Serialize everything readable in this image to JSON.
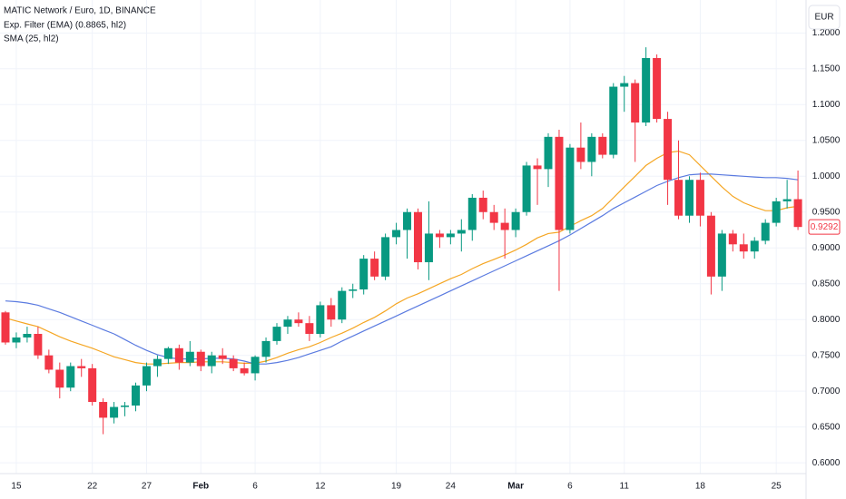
{
  "chart_data": {
    "type": "candlestick",
    "title": "MATIC Network / Euro, 1D, BINANCE",
    "currency": "EUR",
    "up_color": "#089981",
    "down_color": "#f23645",
    "ohlc": {
      "open": [
        0.81,
        0.768,
        0.775,
        0.78,
        0.75,
        0.73,
        0.705,
        0.735,
        0.732,
        0.685,
        0.663,
        0.678,
        0.68,
        0.708,
        0.735,
        0.745,
        0.76,
        0.74,
        0.755,
        0.735,
        0.75,
        0.745,
        0.732,
        0.725,
        0.748,
        0.77,
        0.79,
        0.8,
        0.795,
        0.78,
        0.82,
        0.8,
        0.84,
        0.842,
        0.885,
        0.86,
        0.915,
        0.925,
        0.95,
        0.88,
        0.92,
        0.915,
        0.92,
        0.925,
        0.97,
        0.95,
        0.935,
        0.925,
        0.95,
        1.015,
        1.01,
        1.055,
        0.925,
        1.04,
        1.02,
        1.055,
        1.03,
        1.125,
        1.13,
        1.075,
        1.165,
        1.08,
        0.995,
        0.945,
        0.995,
        0.945,
        0.86,
        0.92,
        0.905,
        0.895,
        0.91,
        0.935,
        0.965,
        0.968
      ],
      "high": [
        0.812,
        0.782,
        0.79,
        0.79,
        0.758,
        0.74,
        0.74,
        0.745,
        0.738,
        0.69,
        0.685,
        0.685,
        0.712,
        0.74,
        0.75,
        0.762,
        0.765,
        0.77,
        0.758,
        0.755,
        0.76,
        0.75,
        0.74,
        0.75,
        0.775,
        0.795,
        0.805,
        0.81,
        0.805,
        0.825,
        0.83,
        0.845,
        0.85,
        0.89,
        0.895,
        0.92,
        0.935,
        0.955,
        0.955,
        0.965,
        0.925,
        0.925,
        0.94,
        0.975,
        0.98,
        0.96,
        0.955,
        0.955,
        1.02,
        1.025,
        1.06,
        1.065,
        1.045,
        1.075,
        1.06,
        1.06,
        1.13,
        1.14,
        1.135,
        1.18,
        1.17,
        1.09,
        1.05,
        1.0,
        1.005,
        0.95,
        0.925,
        0.925,
        0.92,
        0.915,
        0.94,
        0.97,
        0.995,
        1.008
      ],
      "low": [
        0.765,
        0.76,
        0.768,
        0.745,
        0.725,
        0.69,
        0.7,
        0.72,
        0.68,
        0.64,
        0.655,
        0.665,
        0.672,
        0.7,
        0.72,
        0.738,
        0.73,
        0.735,
        0.728,
        0.725,
        0.738,
        0.728,
        0.722,
        0.715,
        0.74,
        0.765,
        0.78,
        0.79,
        0.77,
        0.775,
        0.79,
        0.795,
        0.83,
        0.835,
        0.855,
        0.855,
        0.905,
        0.885,
        0.87,
        0.855,
        0.9,
        0.905,
        0.895,
        0.91,
        0.94,
        0.925,
        0.885,
        0.915,
        0.945,
        0.96,
        0.985,
        0.84,
        0.92,
        1.01,
        1.0,
        1.025,
        1.025,
        1.09,
        1.02,
        1.07,
        1.075,
        0.96,
        0.94,
        0.935,
        0.93,
        0.835,
        0.84,
        0.895,
        0.885,
        0.885,
        0.905,
        0.93,
        0.955,
        0.925
      ],
      "close": [
        0.768,
        0.775,
        0.78,
        0.75,
        0.73,
        0.705,
        0.735,
        0.732,
        0.685,
        0.663,
        0.678,
        0.68,
        0.708,
        0.735,
        0.745,
        0.76,
        0.74,
        0.755,
        0.735,
        0.75,
        0.745,
        0.732,
        0.725,
        0.748,
        0.77,
        0.79,
        0.8,
        0.795,
        0.78,
        0.82,
        0.8,
        0.84,
        0.842,
        0.885,
        0.86,
        0.915,
        0.925,
        0.95,
        0.88,
        0.92,
        0.915,
        0.92,
        0.925,
        0.97,
        0.95,
        0.935,
        0.925,
        0.95,
        1.015,
        1.01,
        1.055,
        0.925,
        1.04,
        1.02,
        1.055,
        1.03,
        1.125,
        1.13,
        1.075,
        1.165,
        1.08,
        0.995,
        0.945,
        0.995,
        0.945,
        0.86,
        0.92,
        0.905,
        0.895,
        0.91,
        0.935,
        0.965,
        0.968,
        0.9292
      ]
    },
    "series": [
      {
        "name": "Exp. Filter (EMA) (0.8865, hl2)",
        "color": "#f5a623",
        "values": [
          0.802,
          0.798,
          0.794,
          0.79,
          0.783,
          0.776,
          0.77,
          0.765,
          0.76,
          0.754,
          0.748,
          0.744,
          0.74,
          0.738,
          0.738,
          0.739,
          0.74,
          0.74,
          0.741,
          0.741,
          0.741,
          0.74,
          0.739,
          0.739,
          0.742,
          0.747,
          0.753,
          0.758,
          0.762,
          0.768,
          0.775,
          0.781,
          0.788,
          0.796,
          0.803,
          0.812,
          0.822,
          0.83,
          0.836,
          0.843,
          0.85,
          0.857,
          0.863,
          0.871,
          0.878,
          0.884,
          0.89,
          0.897,
          0.905,
          0.914,
          0.92,
          0.922,
          0.93,
          0.938,
          0.945,
          0.955,
          0.97,
          0.985,
          1.0,
          1.015,
          1.025,
          1.033,
          1.035,
          1.03,
          1.015,
          1.0,
          0.985,
          0.972,
          0.963,
          0.957,
          0.952,
          0.952,
          0.956,
          0.958
        ]
      },
      {
        "name": "SMA (25, hl2)",
        "color": "#5b7be0",
        "values": [
          0.826,
          0.825,
          0.823,
          0.82,
          0.815,
          0.81,
          0.804,
          0.798,
          0.792,
          0.786,
          0.78,
          0.772,
          0.764,
          0.757,
          0.751,
          0.747,
          0.745,
          0.745,
          0.745,
          0.746,
          0.746,
          0.745,
          0.742,
          0.738,
          0.738,
          0.74,
          0.743,
          0.747,
          0.752,
          0.757,
          0.762,
          0.77,
          0.777,
          0.784,
          0.791,
          0.798,
          0.805,
          0.812,
          0.819,
          0.826,
          0.833,
          0.84,
          0.847,
          0.854,
          0.861,
          0.868,
          0.875,
          0.882,
          0.889,
          0.896,
          0.903,
          0.91,
          0.918,
          0.927,
          0.936,
          0.945,
          0.955,
          0.963,
          0.971,
          0.979,
          0.987,
          0.993,
          0.998,
          1.002,
          1.003,
          1.003,
          1.002,
          1.001,
          1.0,
          0.999,
          0.998,
          0.998,
          0.997,
          0.995
        ]
      }
    ],
    "ylim": [
      0.585,
      1.246
    ],
    "yticks": [
      {
        "value": 0.6,
        "label": "0.6000"
      },
      {
        "value": 0.65,
        "label": "0.6500"
      },
      {
        "value": 0.7,
        "label": "0.7000"
      },
      {
        "value": 0.75,
        "label": "0.7500"
      },
      {
        "value": 0.8,
        "label": "0.8000"
      },
      {
        "value": 0.85,
        "label": "0.8500"
      },
      {
        "value": 0.9,
        "label": "0.9000"
      },
      {
        "value": 0.95,
        "label": "0.9500"
      },
      {
        "value": 1.0,
        "label": "1.0000"
      },
      {
        "value": 1.05,
        "label": "1.0500"
      },
      {
        "value": 1.1,
        "label": "1.1000"
      },
      {
        "value": 1.15,
        "label": "1.1500"
      },
      {
        "value": 1.2,
        "label": "1.2000"
      }
    ],
    "xticks": [
      {
        "value": 1,
        "label": "15"
      },
      {
        "value": 8,
        "label": "22"
      },
      {
        "value": 13,
        "label": "27"
      },
      {
        "value": 18,
        "label": "Feb"
      },
      {
        "value": 23,
        "label": "6"
      },
      {
        "value": 29,
        "label": "12"
      },
      {
        "value": 36,
        "label": "19"
      },
      {
        "value": 41,
        "label": "24"
      },
      {
        "value": 47,
        "label": "Mar"
      },
      {
        "value": 52,
        "label": "6"
      },
      {
        "value": 57,
        "label": "11"
      },
      {
        "value": 64,
        "label": "18"
      },
      {
        "value": 71,
        "label": "25"
      }
    ],
    "grid": true
  }
}
